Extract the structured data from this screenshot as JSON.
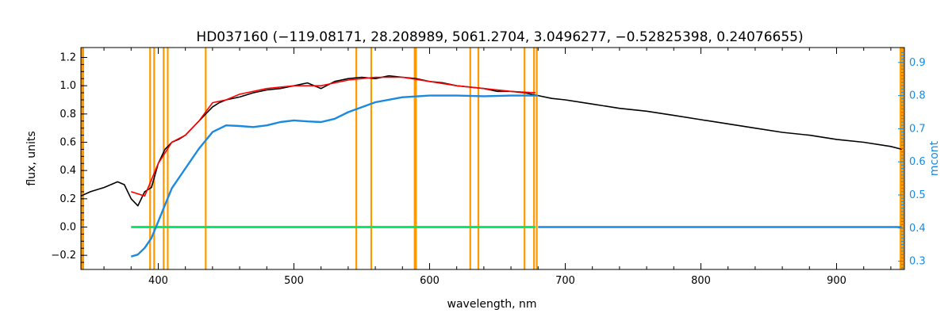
{
  "chart_data": {
    "type": "line",
    "title": "HD037160   (−119.08171, 28.208989, 5061.2704, 3.0496277, −0.52825398, 0.24076655)",
    "xlabel": "wavelength, nm",
    "ylabel": "flux, units",
    "y2label": "mcont",
    "xlim": [
      343,
      950
    ],
    "ylim": [
      -0.3,
      1.27
    ],
    "y2lim": [
      0.275,
      0.945
    ],
    "grid": false,
    "legend": "none",
    "x_ticks": [
      400,
      500,
      600,
      700,
      800,
      900
    ],
    "y_ticks": [
      -0.2,
      0.0,
      0.2,
      0.4,
      0.6,
      0.8,
      1.0,
      1.2
    ],
    "y2_ticks": [
      0.3,
      0.4,
      0.5,
      0.6,
      0.7,
      0.8,
      0.9
    ],
    "x_tick_labels": [
      "400",
      "500",
      "600",
      "700",
      "800",
      "900"
    ],
    "y_tick_labels": [
      "−0.2",
      "0.0",
      "0.2",
      "0.4",
      "0.6",
      "0.8",
      "1.0",
      "1.2"
    ],
    "y2_tick_labels": [
      "0.3",
      "0.4",
      "0.5",
      "0.6",
      "0.7",
      "0.8",
      "0.9"
    ],
    "vlines_nm": [
      394,
      397,
      404,
      407,
      435,
      546,
      557,
      589,
      590,
      630,
      636,
      670,
      677,
      679
    ],
    "series": [
      {
        "axis": "y",
        "color": "#000000",
        "x": [
          343,
          350,
          360,
          370,
          375,
          380,
          385,
          390,
          395,
          400,
          405,
          410,
          415,
          420,
          425,
          430,
          435,
          440,
          445,
          450,
          460,
          470,
          480,
          490,
          500,
          510,
          520,
          530,
          540,
          550,
          560,
          570,
          580,
          590,
          600,
          610,
          620,
          630,
          640,
          650,
          660,
          670,
          680,
          690,
          700,
          720,
          740,
          760,
          780,
          800,
          820,
          840,
          860,
          880,
          900,
          920,
          940,
          948
        ],
        "y": [
          0.22,
          0.25,
          0.28,
          0.32,
          0.3,
          0.2,
          0.15,
          0.25,
          0.28,
          0.45,
          0.55,
          0.6,
          0.62,
          0.65,
          0.7,
          0.75,
          0.8,
          0.85,
          0.88,
          0.9,
          0.92,
          0.95,
          0.97,
          0.98,
          1.0,
          1.02,
          0.98,
          1.03,
          1.05,
          1.06,
          1.05,
          1.07,
          1.06,
          1.05,
          1.03,
          1.02,
          1.0,
          0.99,
          0.98,
          0.96,
          0.96,
          0.95,
          0.93,
          0.91,
          0.9,
          0.87,
          0.84,
          0.82,
          0.79,
          0.76,
          0.73,
          0.7,
          0.67,
          0.65,
          0.62,
          0.6,
          0.57,
          0.55
        ]
      },
      {
        "axis": "y",
        "color": "#ff0000",
        "x": [
          380,
          390,
          400,
          410,
          420,
          430,
          440,
          450,
          460,
          480,
          500,
          520,
          540,
          560,
          580,
          600,
          620,
          640,
          660,
          678
        ],
        "y": [
          0.25,
          0.22,
          0.45,
          0.6,
          0.65,
          0.75,
          0.88,
          0.9,
          0.94,
          0.98,
          1.0,
          1.0,
          1.04,
          1.06,
          1.06,
          1.03,
          1.0,
          0.98,
          0.96,
          0.95
        ]
      },
      {
        "axis": "y",
        "color": "#00ee66",
        "x": [
          380,
          400,
          420,
          440,
          460,
          480,
          500,
          520,
          540,
          560,
          580,
          600,
          620,
          640,
          660,
          678
        ],
        "y": [
          0.0,
          0.0,
          0.0,
          0.0,
          0.0,
          0.0,
          0.0,
          0.0,
          0.0,
          0.0,
          0.0,
          0.0,
          0.0,
          0.0,
          0.0,
          0.0
        ]
      },
      {
        "axis": "y2",
        "color": "#1a8ae0",
        "x": [
          380,
          385,
          390,
          395,
          400,
          405,
          410,
          420,
          430,
          440,
          450,
          460,
          470,
          480,
          490,
          500,
          510,
          520,
          530,
          540,
          560,
          580,
          600,
          620,
          640,
          660,
          680
        ],
        "y": [
          0.314,
          0.32,
          0.34,
          0.37,
          0.42,
          0.47,
          0.52,
          0.58,
          0.64,
          0.69,
          0.71,
          0.708,
          0.705,
          0.71,
          0.72,
          0.725,
          0.722,
          0.72,
          0.73,
          0.75,
          0.78,
          0.795,
          0.8,
          0.8,
          0.798,
          0.8,
          0.8
        ]
      },
      {
        "axis": "y",
        "color": "#1a8ae0",
        "x": [
          680,
          948
        ],
        "y": [
          0.0,
          0.0
        ]
      }
    ]
  }
}
